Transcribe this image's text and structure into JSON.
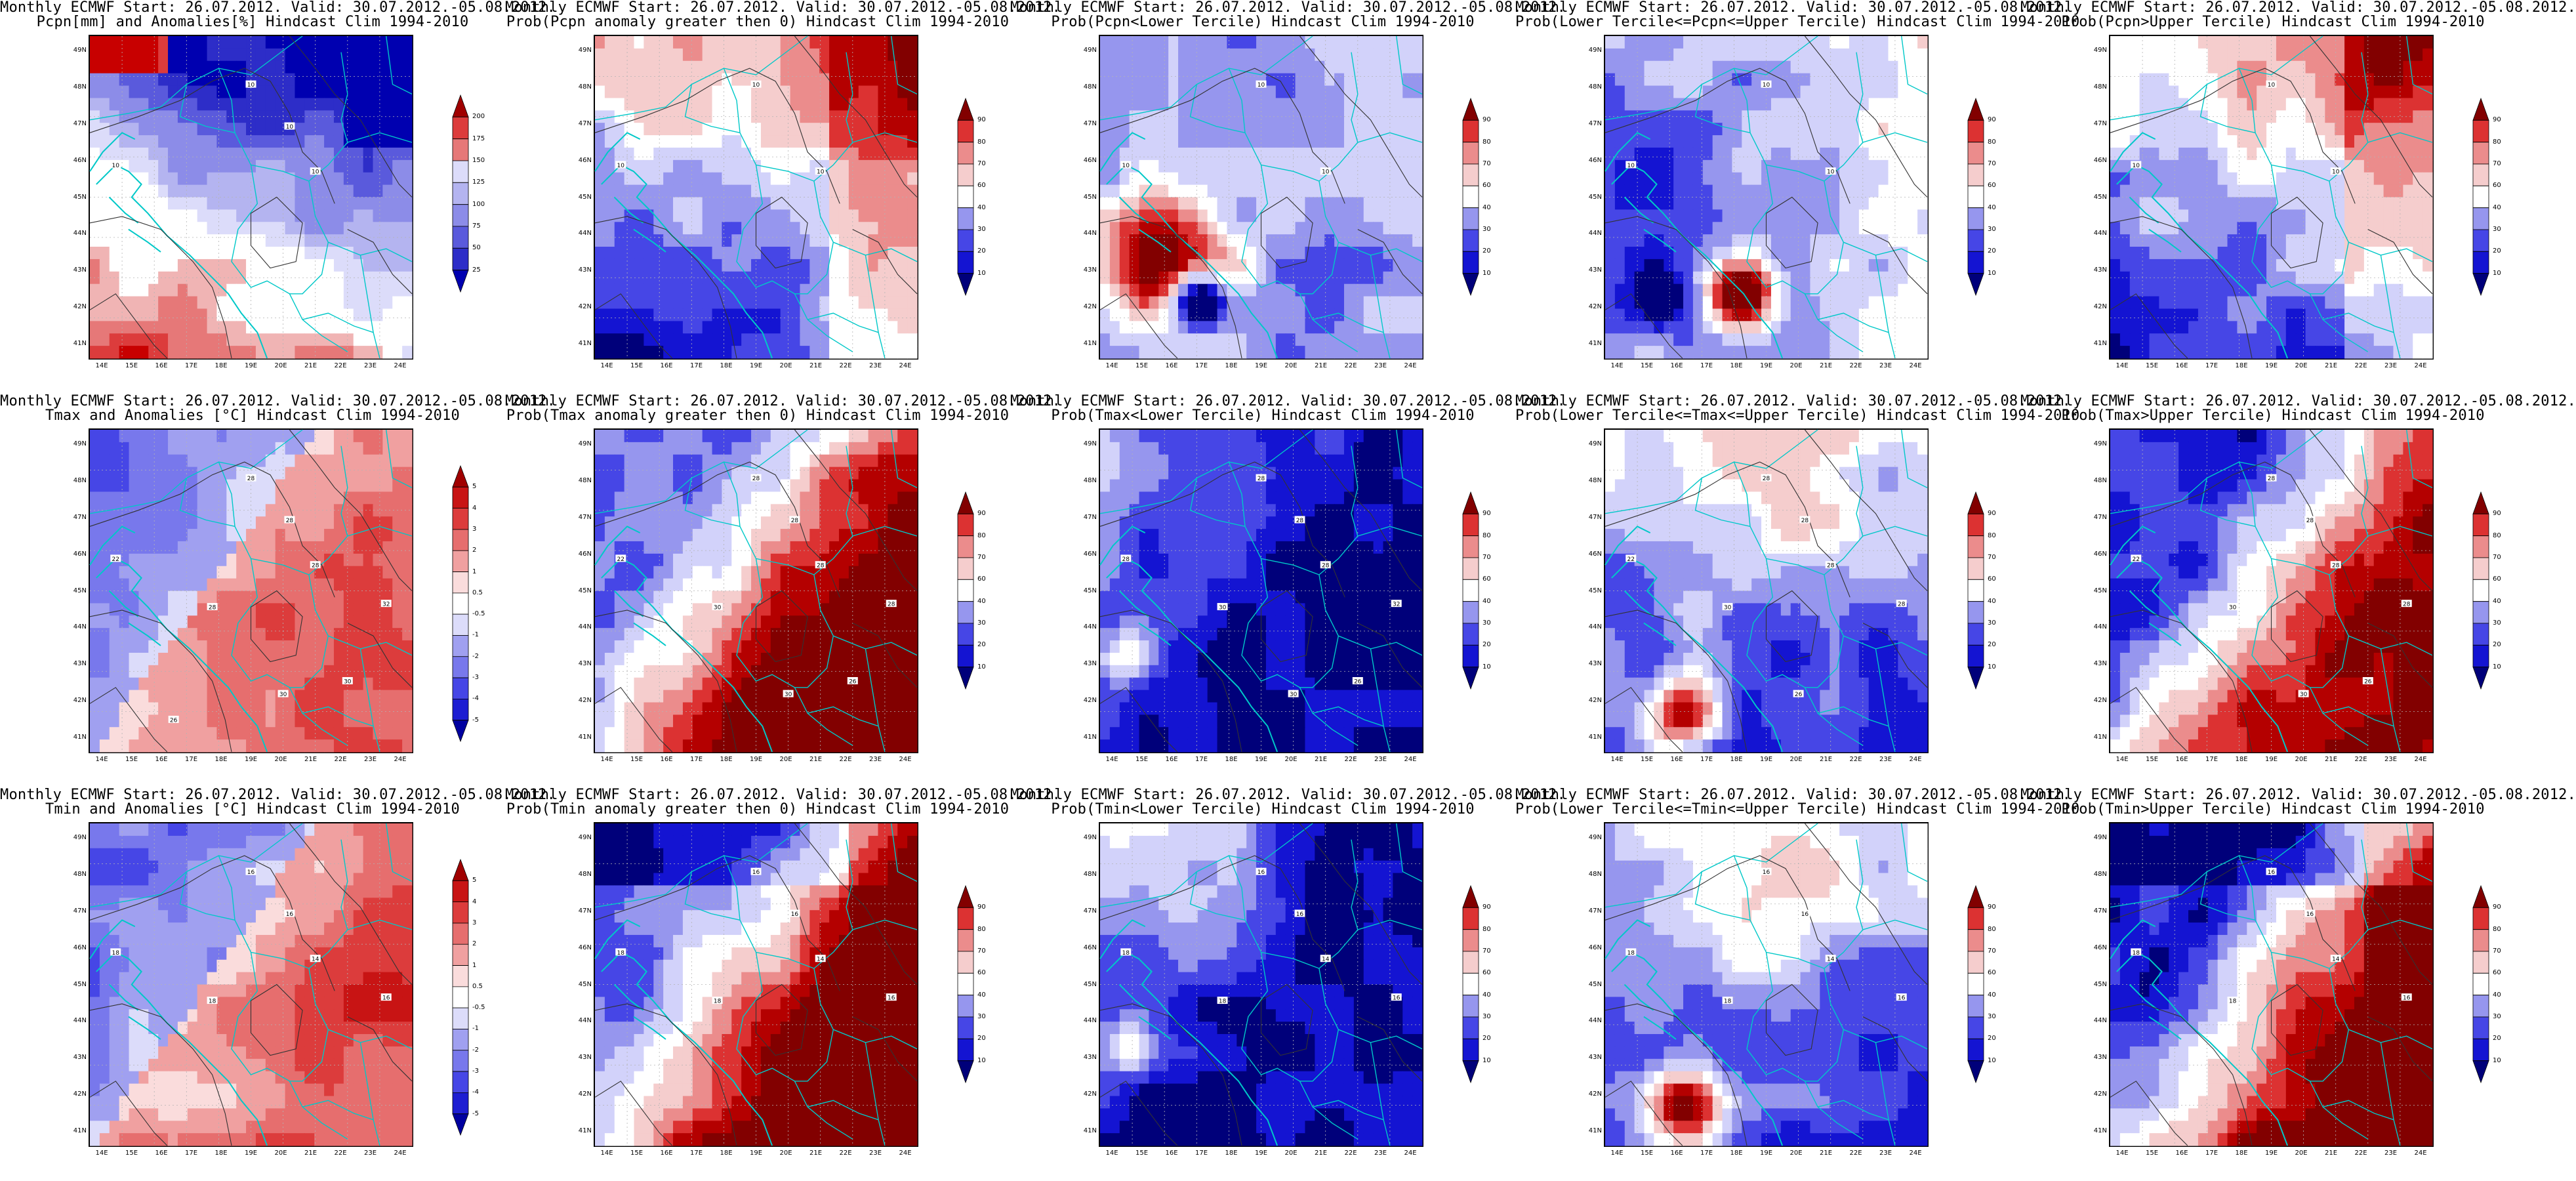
{
  "palettes": {
    "anom_precip": [
      "#ffffff",
      "#dcdcfa",
      "#b4b4f0",
      "#8c8ce8",
      "#5a5adc",
      "#2d2dc8",
      "#0000b0",
      "#f0b4b4",
      "#e67878",
      "#dc3c3c",
      "#c80000",
      "#a00000"
    ],
    "anom_temp": [
      "#0000a0",
      "#1e1ed2",
      "#4646e6",
      "#7878ec",
      "#a0a0f0",
      "#dcdcfa",
      "#ffffff",
      "#fadcdc",
      "#f0a0a0",
      "#e66e6e",
      "#dc3c3c",
      "#c81414",
      "#a00000"
    ],
    "prob": [
      "#00007a",
      "#1414d2",
      "#4646e6",
      "#9696ee",
      "#d2d2fa",
      "#ffffff",
      "#f5cdcd",
      "#eb8c8c",
      "#dc3232",
      "#b40000",
      "#820000"
    ]
  },
  "colors": {
    "coast": "#00c8c8",
    "contour": "#333333",
    "grid": "#b4b4b4"
  },
  "ylabels": [
    "49N",
    "48N",
    "47N",
    "46N",
    "45N",
    "44N",
    "43N",
    "42N",
    "41N"
  ],
  "xlabels": [
    "14E",
    "15E",
    "16E",
    "17E",
    "18E",
    "19E",
    "20E",
    "21E",
    "22E",
    "23E",
    "24E"
  ],
  "panels": [
    {
      "title1": "Monthly ECMWF Start: 26.07.2012. Valid: 30.07.2012.-05.08.2012.",
      "title2": "Pcpn[mm] and Anomalies[%] Hindcast Clim 1994-2010",
      "variable": "pcpn",
      "stat": "anomaly",
      "colorbar_labels": [
        "25",
        "50",
        "75",
        "100",
        "125",
        "150",
        "175",
        "200"
      ],
      "contour_labels": [
        "10",
        "10",
        "10",
        "10"
      ]
    },
    {
      "title1": "Monthly ECMWF Start: 26.07.2012. Valid: 30.07.2012.-05.08.2012.",
      "title2": "Prob(Pcpn anomaly greater then 0) Hindcast Clim 1994-2010",
      "variable": "pcpn",
      "stat": "prob_gt0",
      "colorbar_labels": [
        "10",
        "20",
        "30",
        "40",
        "60",
        "70",
        "80",
        "90"
      ],
      "contour_labels": [
        "10",
        "10",
        "10"
      ]
    },
    {
      "title1": "Monthly ECMWF Start: 26.07.2012. Valid: 30.07.2012.-05.08.2012.",
      "title2": "Prob(Pcpn<Lower Tercile) Hindcast Clim 1994-2010",
      "variable": "pcpn",
      "stat": "prob_lower",
      "colorbar_labels": [
        "10",
        "20",
        "30",
        "40",
        "60",
        "70",
        "80",
        "90"
      ],
      "contour_labels": [
        "10",
        "10",
        "10"
      ]
    },
    {
      "title1": "Monthly ECMWF Start: 26.07.2012. Valid: 30.07.2012.-05.08.2012.",
      "title2": "Prob(Lower Tercile<=Pcpn<=Upper Tercile) Hindcast Clim 1994-2010",
      "variable": "pcpn",
      "stat": "prob_middle",
      "colorbar_labels": [
        "10",
        "20",
        "30",
        "40",
        "60",
        "70",
        "80",
        "90"
      ],
      "contour_labels": [
        "10",
        "10",
        "10"
      ]
    },
    {
      "title1": "Monthly ECMWF Start: 26.07.2012. Valid: 30.07.2012.-05.08.2012.",
      "title2": "Prob(Pcpn>Upper Tercile) Hindcast Clim 1994-2010",
      "variable": "pcpn",
      "stat": "prob_upper",
      "colorbar_labels": [
        "10",
        "20",
        "30",
        "40",
        "60",
        "70",
        "80",
        "90"
      ],
      "contour_labels": [
        "10",
        "10",
        "10"
      ]
    },
    {
      "title1": "Monthly ECMWF Start: 26.07.2012. Valid: 30.07.2012.-05.08.2012.",
      "title2": "Tmax and Anomalies [°C] Hindcast Clim 1994-2010",
      "variable": "tmax",
      "stat": "anomaly",
      "colorbar_labels": [
        "-5",
        "-4",
        "-3",
        "-2",
        "-1",
        "-0.5",
        "0.5",
        "1",
        "2",
        "3",
        "4",
        "5"
      ],
      "contour_labels": [
        "28",
        "22",
        "28",
        "28",
        "32",
        "28",
        "30",
        "30",
        "26"
      ]
    },
    {
      "title1": "Monthly ECMWF Start: 26.07.2012. Valid: 30.07.2012.-05.08.2012.",
      "title2": "Prob(Tmax anomaly greater then 0) Hindcast Clim 1994-2010",
      "variable": "tmax",
      "stat": "prob_gt0",
      "colorbar_labels": [
        "10",
        "20",
        "30",
        "40",
        "60",
        "70",
        "80",
        "90"
      ],
      "contour_labels": [
        "28",
        "22",
        "28",
        "28",
        "28",
        "30",
        "30",
        "26"
      ]
    },
    {
      "title1": "Monthly ECMWF Start: 26.07.2012. Valid: 30.07.2012.-05.08.2012.",
      "title2": "Prob(Tmax<Lower Tercile) Hindcast Clim 1994-2010",
      "variable": "tmax",
      "stat": "prob_lower",
      "colorbar_labels": [
        "10",
        "20",
        "30",
        "40",
        "60",
        "70",
        "80",
        "90"
      ],
      "contour_labels": [
        "28",
        "28",
        "28",
        "28",
        "32",
        "30",
        "30",
        "26"
      ]
    },
    {
      "title1": "Monthly ECMWF Start: 26.07.2012. Valid: 30.07.2012.-05.08.2012.",
      "title2": "Prob(Lower Tercile<=Tmax<=Upper Tercile) Hindcast Clim 1994-2010",
      "variable": "tmax",
      "stat": "prob_middle",
      "colorbar_labels": [
        "10",
        "20",
        "30",
        "40",
        "60",
        "70",
        "80",
        "90"
      ],
      "contour_labels": [
        "28",
        "22",
        "28",
        "28",
        "28",
        "30",
        "26"
      ]
    },
    {
      "title1": "Monthly ECMWF Start: 26.07.2012. Valid: 30.07.2012.-05.08.2012.",
      "title2": "Prob(Tmax>Upper Tercile) Hindcast Clim 1994-2010",
      "variable": "tmax",
      "stat": "prob_upper",
      "colorbar_labels": [
        "10",
        "20",
        "30",
        "40",
        "60",
        "70",
        "80",
        "90"
      ],
      "contour_labels": [
        "28",
        "22",
        "28",
        "28",
        "28",
        "30",
        "30",
        "26"
      ]
    },
    {
      "title1": "Monthly ECMWF Start: 26.07.2012. Valid: 30.07.2012.-05.08.2012.",
      "title2": "Tmin and Anomalies [°C] Hindcast Clim 1994-2010",
      "variable": "tmin",
      "stat": "anomaly",
      "colorbar_labels": [
        "-5",
        "-4",
        "-3",
        "-2",
        "-1",
        "-0.5",
        "0.5",
        "1",
        "2",
        "3",
        "4",
        "5"
      ],
      "contour_labels": [
        "16",
        "18",
        "14",
        "16",
        "16",
        "18"
      ]
    },
    {
      "title1": "Monthly ECMWF Start: 26.07.2012. Valid: 30.07.2012.-05.08.2012.",
      "title2": "Prob(Tmin anomaly greater then 0) Hindcast Clim 1994-2010",
      "variable": "tmin",
      "stat": "prob_gt0",
      "colorbar_labels": [
        "10",
        "20",
        "30",
        "40",
        "60",
        "70",
        "80",
        "90"
      ],
      "contour_labels": [
        "16",
        "18",
        "14",
        "16",
        "16",
        "18"
      ]
    },
    {
      "title1": "Monthly ECMWF Start: 26.07.2012. Valid: 30.07.2012.-05.08.2012.",
      "title2": "Prob(Tmin<Lower Tercile) Hindcast Clim 1994-2010",
      "variable": "tmin",
      "stat": "prob_lower",
      "colorbar_labels": [
        "10",
        "20",
        "30",
        "40",
        "60",
        "70",
        "80",
        "90"
      ],
      "contour_labels": [
        "16",
        "18",
        "14",
        "16",
        "16",
        "18"
      ]
    },
    {
      "title1": "Monthly ECMWF Start: 26.07.2012. Valid: 30.07.2012.-05.08.2012.",
      "title2": "Prob(Lower Tercile<=Tmin<=Upper Tercile) Hindcast Clim 1994-2010",
      "variable": "tmin",
      "stat": "prob_middle",
      "colorbar_labels": [
        "10",
        "20",
        "30",
        "40",
        "60",
        "70",
        "80",
        "90"
      ],
      "contour_labels": [
        "16",
        "18",
        "14",
        "16",
        "16",
        "18"
      ]
    },
    {
      "title1": "Monthly ECMWF Start: 26.07.2012. Valid: 30.07.2012.-05.08.2012.",
      "title2": "Prob(Tmin>Upper Tercile) Hindcast Clim 1994-2010",
      "variable": "tmin",
      "stat": "prob_upper",
      "colorbar_labels": [
        "10",
        "20",
        "30",
        "40",
        "60",
        "70",
        "80",
        "90"
      ],
      "contour_labels": [
        "16",
        "18",
        "14",
        "16",
        "16",
        "18"
      ]
    }
  ]
}
